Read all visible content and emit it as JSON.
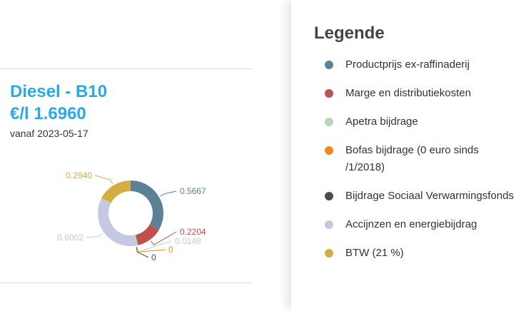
{
  "fuel": {
    "title": "Diesel - B10",
    "price": "€/l 1.6960",
    "date": "vanaf 2023-05-17"
  },
  "legend": {
    "title": "Legende",
    "items": [
      {
        "label": "Productprijs ex-raffinaderij",
        "color": "#5b8196"
      },
      {
        "label": "Marge en distributiekosten",
        "color": "#c0504d"
      },
      {
        "label": "Apetra bijdrage",
        "color": "#b9d6b8"
      },
      {
        "label": "Bofas bijdrage (0 euro sinds /1/2018)",
        "color": "#f7861f"
      },
      {
        "label": "Bijdrage Sociaal Verwarmingsfonds",
        "color": "#4a4a4a"
      },
      {
        "label": "Accijnzen en energiebijdrag",
        "color": "#c6c8e2"
      },
      {
        "label": "BTW (21 %)",
        "color": "#d6ad42"
      }
    ]
  },
  "chart_data": {
    "type": "pie",
    "variant": "donut",
    "slices": [
      {
        "category": "Productprijs ex-raffinaderij",
        "value": 0.5667,
        "label": "0.5667",
        "color": "#5b8196"
      },
      {
        "category": "Marge en distributiekosten",
        "value": 0.2204,
        "label": "0.2204",
        "color": "#c0504d"
      },
      {
        "category": "Apetra bijdrage",
        "value": 0.0148,
        "label": "0.0148",
        "color": "#b9d6b8"
      },
      {
        "category": "Bofas bijdrage",
        "value": 0,
        "label": "0",
        "color": "#f7861f"
      },
      {
        "category": "Bijdrage Sociaal Verwarmingsfonds",
        "value": 0,
        "label": "0",
        "color": "#4a4a4a"
      },
      {
        "category": "Accijnzen en energiebijdrag",
        "value": 0.6002,
        "label": "0.6002",
        "color": "#c6c8e2"
      },
      {
        "category": "BTW (21 %)",
        "value": 0.294,
        "label": "0.2940",
        "color": "#d6ad42"
      }
    ],
    "legend": "right"
  }
}
